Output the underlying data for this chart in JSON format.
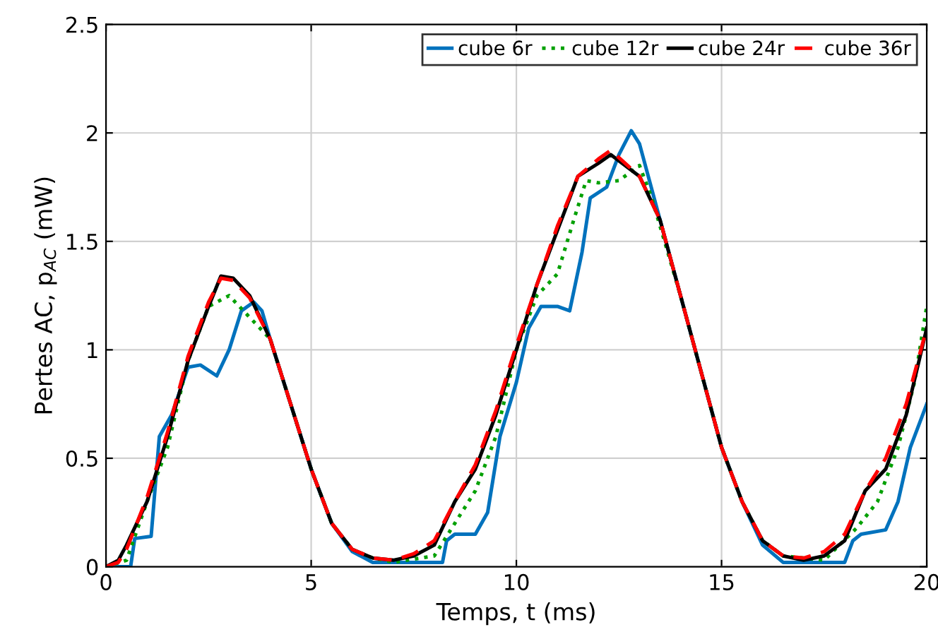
{
  "chart_data": {
    "type": "line",
    "xlabel": "Temps, t (ms)",
    "ylabel": "Pertes AC, p$_{AC}$ (mW)",
    "xlim": [
      0,
      20
    ],
    "ylim": [
      0,
      2.5
    ],
    "xticks": [
      0,
      5,
      10,
      15,
      20
    ],
    "yticks": [
      0,
      0.5,
      1,
      1.5,
      2,
      2.5
    ],
    "grid": true,
    "legend": "top right",
    "series": [
      {
        "name": "cube 6r",
        "color": "#0072bd",
        "line_style": "solid",
        "x": [
          0,
          0.6,
          0.7,
          1.1,
          1.3,
          1.6,
          2,
          2.3,
          2.7,
          3,
          3.3,
          3.6,
          3.8,
          4,
          4.5,
          5,
          5.5,
          6,
          6.5,
          8.2,
          8.3,
          8.5,
          9,
          9.3,
          9.6,
          10,
          10.3,
          10.6,
          11,
          11.3,
          11.6,
          11.8,
          12.2,
          12.5,
          12.8,
          13,
          13.5,
          14,
          14.5,
          15,
          15.5,
          16,
          16.5,
          18,
          18.2,
          18.4,
          19,
          19.3,
          19.6,
          20
        ],
        "values": [
          0,
          0,
          0.13,
          0.14,
          0.6,
          0.7,
          0.92,
          0.93,
          0.88,
          1.0,
          1.18,
          1.22,
          1.18,
          1.05,
          0.75,
          0.45,
          0.2,
          0.07,
          0.02,
          0.02,
          0.12,
          0.15,
          0.15,
          0.25,
          0.6,
          0.85,
          1.1,
          1.2,
          1.2,
          1.18,
          1.45,
          1.7,
          1.75,
          1.9,
          2.01,
          1.95,
          1.6,
          1.25,
          0.9,
          0.55,
          0.3,
          0.1,
          0.02,
          0.02,
          0.12,
          0.15,
          0.17,
          0.3,
          0.55,
          0.75
        ]
      },
      {
        "name": "cube 12r",
        "color": "#00a000",
        "line_style": "dotted",
        "x": [
          0,
          0.5,
          1,
          1.5,
          2,
          2.5,
          3,
          3.5,
          4,
          4.5,
          5,
          5.5,
          6,
          6.5,
          7,
          8,
          8.5,
          9,
          9.5,
          10,
          10.5,
          11,
          11.4,
          11.7,
          12,
          12.5,
          13,
          13.3,
          14,
          14.5,
          15,
          15.5,
          16,
          16.5,
          17.5,
          18.3,
          18.8,
          19.3,
          19.7,
          20
        ],
        "values": [
          0,
          0.03,
          0.3,
          0.55,
          0.95,
          1.2,
          1.25,
          1.15,
          1.05,
          0.75,
          0.45,
          0.2,
          0.08,
          0.04,
          0.02,
          0.05,
          0.2,
          0.35,
          0.6,
          1.0,
          1.25,
          1.35,
          1.6,
          1.78,
          1.77,
          1.78,
          1.85,
          1.7,
          1.25,
          0.9,
          0.55,
          0.3,
          0.12,
          0.05,
          0.03,
          0.18,
          0.3,
          0.55,
          0.85,
          1.2
        ]
      },
      {
        "name": "cube 24r",
        "color": "#000000",
        "line_style": "solid",
        "x": [
          0,
          0.3,
          0.5,
          1,
          1.5,
          2,
          2.5,
          2.8,
          3.1,
          3.5,
          4,
          4.5,
          5,
          5.5,
          6,
          6.5,
          7,
          7.5,
          8,
          8.5,
          9,
          9.5,
          10,
          10.5,
          11,
          11.5,
          12,
          12.3,
          13,
          13.5,
          14,
          14.5,
          15,
          15.5,
          16,
          16.5,
          17,
          17.5,
          18,
          18.5,
          19,
          19.5,
          20
        ],
        "values": [
          0,
          0.03,
          0.1,
          0.3,
          0.6,
          0.95,
          1.2,
          1.34,
          1.33,
          1.25,
          1.05,
          0.75,
          0.45,
          0.2,
          0.08,
          0.04,
          0.03,
          0.05,
          0.1,
          0.3,
          0.45,
          0.7,
          1.0,
          1.3,
          1.55,
          1.8,
          1.86,
          1.9,
          1.8,
          1.6,
          1.25,
          0.9,
          0.55,
          0.3,
          0.12,
          0.05,
          0.03,
          0.05,
          0.12,
          0.35,
          0.45,
          0.7,
          1.1
        ]
      },
      {
        "name": "cube 36r",
        "color": "#ff0000",
        "line_style": "dashed",
        "x": [
          0,
          0.3,
          0.5,
          1,
          1.5,
          2,
          2.5,
          2.8,
          3.1,
          3.5,
          4,
          4.5,
          5,
          5.5,
          6,
          6.5,
          7,
          7.5,
          8,
          8.5,
          9,
          9.5,
          10,
          10.5,
          11,
          11.5,
          12,
          12.3,
          13,
          13.5,
          14,
          14.5,
          15,
          15.5,
          16,
          16.5,
          17,
          17.5,
          18,
          18.5,
          19,
          19.5,
          20
        ],
        "values": [
          0,
          0.02,
          0.08,
          0.32,
          0.62,
          0.97,
          1.22,
          1.33,
          1.32,
          1.24,
          1.05,
          0.75,
          0.45,
          0.2,
          0.08,
          0.04,
          0.03,
          0.06,
          0.12,
          0.3,
          0.47,
          0.72,
          1.02,
          1.3,
          1.57,
          1.8,
          1.88,
          1.92,
          1.8,
          1.6,
          1.25,
          0.9,
          0.55,
          0.3,
          0.12,
          0.05,
          0.04,
          0.07,
          0.15,
          0.35,
          0.5,
          0.75,
          1.1
        ]
      }
    ]
  }
}
